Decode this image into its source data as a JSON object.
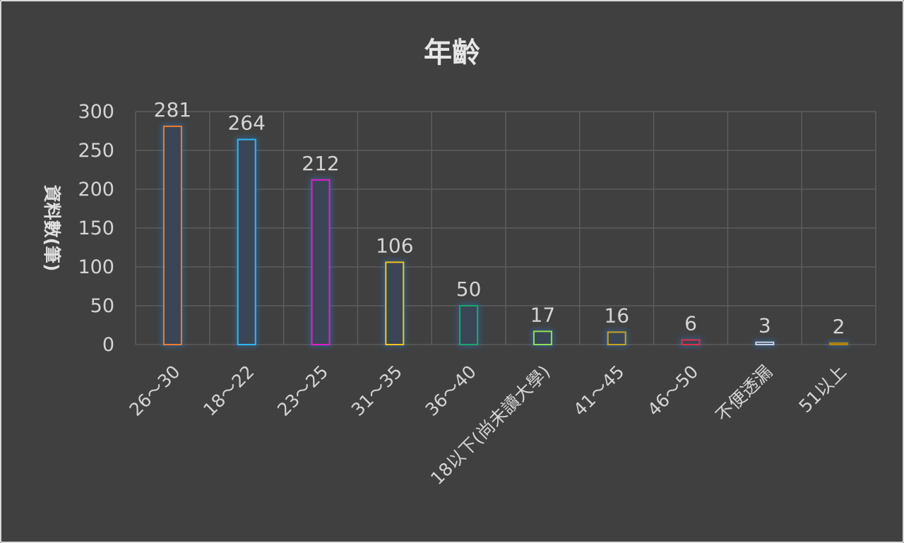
{
  "chart_data": {
    "type": "bar",
    "title": "年齡",
    "xlabel": "",
    "ylabel": "資料數(筆)",
    "categories": [
      "26～30",
      "18～22",
      "23～25",
      "31～35",
      "36～40",
      "18以下(尚未讀大學)",
      "41～45",
      "46～50",
      "不便透漏",
      "51以上"
    ],
    "values": [
      281,
      264,
      212,
      106,
      50,
      17,
      16,
      6,
      3,
      2
    ],
    "bar_colors": [
      "#ed7d31",
      "#2eb8f5",
      "#e020c8",
      "#f5c518",
      "#1aa86a",
      "#8ee05a",
      "#c9a227",
      "#e0304a",
      "#c8d0e8",
      "#b8860b"
    ],
    "ylim": [
      0,
      300
    ],
    "yticks": [
      0,
      50,
      100,
      150,
      200,
      250,
      300
    ],
    "grid": true,
    "legend": "none"
  }
}
